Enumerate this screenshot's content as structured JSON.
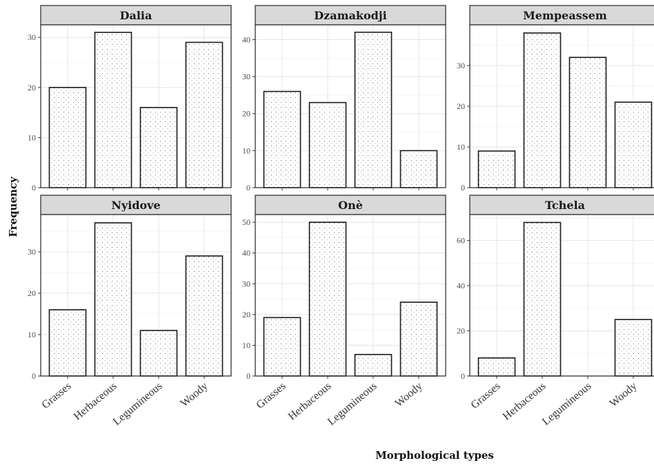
{
  "chart_data": {
    "type": "bar",
    "layout": "facet grid 2x3",
    "xlabel": "Morphological types",
    "ylabel": "Frequency",
    "categories": [
      "Grasses",
      "Herbaceous",
      "Legumineous",
      "Woody"
    ],
    "grid": true,
    "bar_fill": "stippled",
    "panels": [
      {
        "title": "Dalia",
        "values": [
          20,
          31,
          16,
          29
        ],
        "ylim": [
          0,
          32.5
        ],
        "yticks": [
          0,
          10,
          20,
          30
        ]
      },
      {
        "title": "Dzamakodji",
        "values": [
          26,
          23,
          42,
          10
        ],
        "ylim": [
          0,
          44
        ],
        "yticks": [
          0,
          10,
          20,
          30,
          40
        ]
      },
      {
        "title": "Mempeassem",
        "values": [
          9,
          38,
          32,
          21
        ],
        "ylim": [
          0,
          40
        ],
        "yticks": [
          0,
          10,
          20,
          30
        ]
      },
      {
        "title": "Nyidove",
        "values": [
          16,
          37,
          11,
          29
        ],
        "ylim": [
          0,
          39
        ],
        "yticks": [
          0,
          10,
          20,
          30
        ]
      },
      {
        "title": "Onè",
        "values": [
          19,
          50,
          7,
          24
        ],
        "ylim": [
          0,
          52.5
        ],
        "yticks": [
          0,
          10,
          20,
          30,
          40,
          50
        ]
      },
      {
        "title": "Tchela",
        "values": [
          8,
          68,
          null,
          25
        ],
        "ylim": [
          0,
          71.5
        ],
        "yticks": [
          0,
          20,
          40,
          60
        ]
      }
    ]
  },
  "colors": {
    "strip_background": "#d9d9d9",
    "panel_border": "#333333",
    "gridline": "#e6e6e6",
    "bar_outline": "#1a1a1a"
  }
}
